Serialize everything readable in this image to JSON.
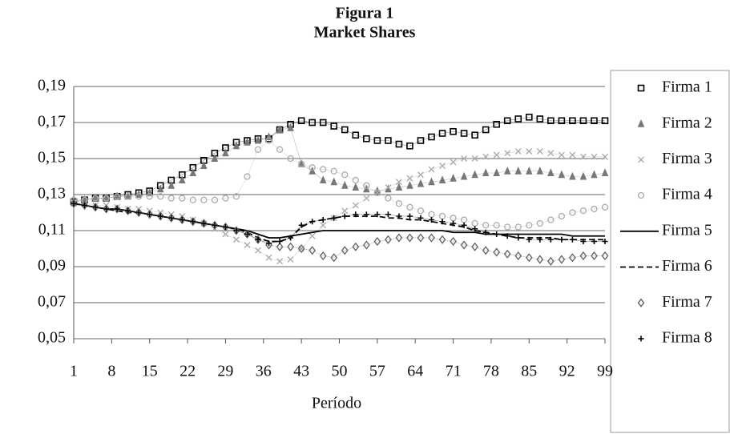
{
  "chart_data": {
    "type": "line",
    "title": "Figura 1",
    "subtitle": "Market Shares",
    "xlabel": "Período",
    "x": [
      1,
      3,
      5,
      7,
      9,
      11,
      13,
      15,
      17,
      19,
      21,
      23,
      25,
      27,
      29,
      31,
      33,
      35,
      37,
      39,
      41,
      43,
      45,
      47,
      49,
      51,
      53,
      55,
      57,
      59,
      61,
      63,
      65,
      67,
      69,
      71,
      73,
      75,
      77,
      79,
      81,
      83,
      85,
      87,
      89,
      91,
      93,
      95,
      97,
      99
    ],
    "xlim": [
      1,
      99
    ],
    "xticks": [
      1,
      8,
      15,
      22,
      29,
      36,
      43,
      50,
      57,
      64,
      71,
      78,
      85,
      92,
      99
    ],
    "ylim": [
      0.05,
      0.19
    ],
    "yticks": [
      {
        "value": 0.05,
        "label": "0,05"
      },
      {
        "value": 0.07,
        "label": "0,07"
      },
      {
        "value": 0.09,
        "label": "0,09"
      },
      {
        "value": 0.11,
        "label": "0,11"
      },
      {
        "value": 0.13,
        "label": "0,13"
      },
      {
        "value": 0.15,
        "label": "0,15"
      },
      {
        "value": 0.17,
        "label": "0,17"
      },
      {
        "value": 0.19,
        "label": "0,19"
      }
    ],
    "grid": true,
    "legend": "right",
    "series": [
      {
        "name": "Firma 1",
        "color": "#000000",
        "marker": "square",
        "values": [
          0.126,
          0.127,
          0.128,
          0.128,
          0.129,
          0.13,
          0.131,
          0.132,
          0.135,
          0.138,
          0.141,
          0.145,
          0.149,
          0.153,
          0.156,
          0.159,
          0.16,
          0.161,
          0.161,
          0.166,
          0.169,
          0.171,
          0.17,
          0.17,
          0.168,
          0.166,
          0.163,
          0.161,
          0.16,
          0.16,
          0.158,
          0.157,
          0.16,
          0.162,
          0.164,
          0.165,
          0.164,
          0.163,
          0.166,
          0.169,
          0.171,
          0.172,
          0.173,
          0.172,
          0.171,
          0.171,
          0.171,
          0.171,
          0.171,
          0.171
        ]
      },
      {
        "name": "Firma 2",
        "color": "#777777",
        "marker": "triangle",
        "values": [
          0.126,
          0.127,
          0.128,
          0.128,
          0.129,
          0.129,
          0.13,
          0.131,
          0.133,
          0.135,
          0.138,
          0.142,
          0.146,
          0.15,
          0.153,
          0.157,
          0.159,
          0.16,
          0.162,
          0.166,
          0.167,
          0.147,
          0.143,
          0.138,
          0.137,
          0.135,
          0.134,
          0.133,
          0.132,
          0.133,
          0.134,
          0.135,
          0.136,
          0.137,
          0.138,
          0.139,
          0.14,
          0.141,
          0.142,
          0.142,
          0.143,
          0.143,
          0.143,
          0.143,
          0.142,
          0.141,
          0.14,
          0.14,
          0.141,
          0.142
        ]
      },
      {
        "name": "Firma 3",
        "color": "#aaaaaa",
        "marker": "x",
        "values": [
          0.125,
          0.125,
          0.124,
          0.124,
          0.123,
          0.122,
          0.122,
          0.121,
          0.12,
          0.119,
          0.118,
          0.116,
          0.114,
          0.111,
          0.108,
          0.105,
          0.102,
          0.099,
          0.095,
          0.093,
          0.094,
          0.1,
          0.107,
          0.113,
          0.117,
          0.121,
          0.124,
          0.128,
          0.131,
          0.134,
          0.137,
          0.139,
          0.141,
          0.144,
          0.146,
          0.148,
          0.15,
          0.15,
          0.151,
          0.152,
          0.153,
          0.154,
          0.154,
          0.154,
          0.153,
          0.152,
          0.152,
          0.151,
          0.151,
          0.151
        ]
      },
      {
        "name": "Firma 4",
        "color": "#aaaaaa",
        "marker": "circle",
        "values": [
          0.127,
          0.127,
          0.128,
          0.128,
          0.129,
          0.129,
          0.129,
          0.129,
          0.129,
          0.128,
          0.128,
          0.127,
          0.127,
          0.127,
          0.128,
          0.129,
          0.14,
          0.155,
          0.16,
          0.155,
          0.15,
          0.147,
          0.145,
          0.144,
          0.143,
          0.141,
          0.138,
          0.135,
          0.131,
          0.128,
          0.125,
          0.123,
          0.121,
          0.119,
          0.118,
          0.117,
          0.116,
          0.114,
          0.113,
          0.113,
          0.112,
          0.112,
          0.113,
          0.114,
          0.116,
          0.118,
          0.12,
          0.121,
          0.122,
          0.123
        ]
      },
      {
        "name": "Firma 5",
        "color": "#000000",
        "line_style": "solid",
        "values": [
          0.125,
          0.124,
          0.123,
          0.122,
          0.122,
          0.121,
          0.12,
          0.119,
          0.118,
          0.117,
          0.116,
          0.115,
          0.114,
          0.113,
          0.112,
          0.111,
          0.11,
          0.108,
          0.106,
          0.106,
          0.107,
          0.108,
          0.109,
          0.11,
          0.11,
          0.11,
          0.11,
          0.11,
          0.11,
          0.11,
          0.11,
          0.11,
          0.11,
          0.11,
          0.11,
          0.109,
          0.109,
          0.109,
          0.108,
          0.108,
          0.108,
          0.108,
          0.108,
          0.108,
          0.108,
          0.108,
          0.107,
          0.107,
          0.107,
          0.107
        ]
      },
      {
        "name": "Firma 6",
        "color": "#000000",
        "line_style": "dashed",
        "values": [
          0.125,
          0.124,
          0.123,
          0.122,
          0.121,
          0.12,
          0.12,
          0.119,
          0.118,
          0.117,
          0.116,
          0.115,
          0.114,
          0.113,
          0.112,
          0.111,
          0.109,
          0.106,
          0.104,
          0.104,
          0.106,
          0.112,
          0.115,
          0.116,
          0.117,
          0.118,
          0.118,
          0.118,
          0.118,
          0.117,
          0.117,
          0.116,
          0.116,
          0.115,
          0.114,
          0.113,
          0.112,
          0.11,
          0.109,
          0.108,
          0.107,
          0.106,
          0.106,
          0.106,
          0.106,
          0.105,
          0.105,
          0.105,
          0.105,
          0.105
        ]
      },
      {
        "name": "Firma 7",
        "color": "#666666",
        "marker": "diamond",
        "values": [
          0.125,
          0.124,
          0.123,
          0.122,
          0.122,
          0.121,
          0.12,
          0.119,
          0.118,
          0.117,
          0.116,
          0.115,
          0.114,
          0.113,
          0.112,
          0.11,
          0.108,
          0.105,
          0.102,
          0.101,
          0.101,
          0.1,
          0.099,
          0.096,
          0.095,
          0.099,
          0.101,
          0.102,
          0.104,
          0.105,
          0.106,
          0.106,
          0.106,
          0.106,
          0.105,
          0.104,
          0.102,
          0.101,
          0.099,
          0.098,
          0.097,
          0.096,
          0.095,
          0.094,
          0.093,
          0.094,
          0.095,
          0.096,
          0.096,
          0.096
        ]
      },
      {
        "name": "Firma 8",
        "color": "#000000",
        "marker": "plus",
        "values": [
          0.125,
          0.124,
          0.123,
          0.122,
          0.122,
          0.121,
          0.12,
          0.119,
          0.118,
          0.117,
          0.116,
          0.115,
          0.114,
          0.113,
          0.112,
          0.11,
          0.108,
          0.105,
          0.103,
          0.104,
          0.106,
          0.113,
          0.115,
          0.116,
          0.117,
          0.118,
          0.119,
          0.119,
          0.119,
          0.119,
          0.118,
          0.118,
          0.117,
          0.116,
          0.115,
          0.114,
          0.113,
          0.111,
          0.109,
          0.108,
          0.107,
          0.106,
          0.105,
          0.105,
          0.105,
          0.105,
          0.105,
          0.104,
          0.104,
          0.104
        ]
      }
    ]
  }
}
